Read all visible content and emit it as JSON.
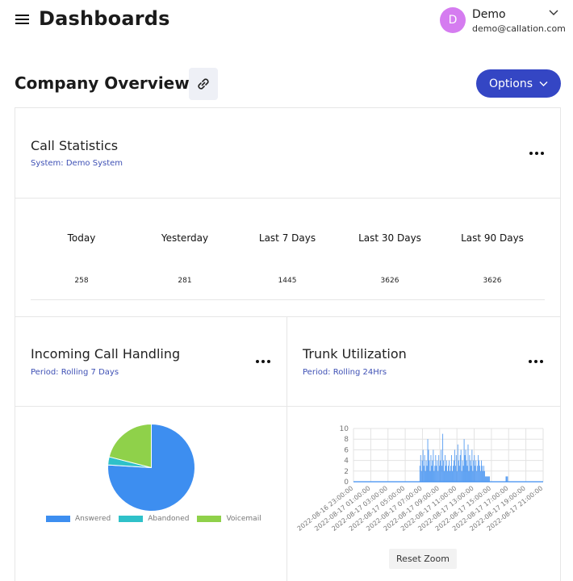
{
  "header": {
    "title": "Dashboards",
    "user": {
      "initial": "D",
      "name": "Demo",
      "email": "demo@callation.com"
    }
  },
  "page": {
    "section_title": "Company Overview",
    "options_label": "Options"
  },
  "call_statistics": {
    "title": "Call Statistics",
    "subtitle": "System: Demo System",
    "columns": [
      {
        "label": "Today",
        "value": "258"
      },
      {
        "label": "Yesterday",
        "value": "281"
      },
      {
        "label": "Last 7 Days",
        "value": "1445"
      },
      {
        "label": "Last 30 Days",
        "value": "3626"
      },
      {
        "label": "Last 90 Days",
        "value": "3626"
      }
    ]
  },
  "incoming_call_handling": {
    "title": "Incoming Call Handling",
    "subtitle": "Period: Rolling 7 Days"
  },
  "trunk_utilization": {
    "title": "Trunk Utilization",
    "subtitle": "Period: Rolling 24Hrs",
    "reset_zoom_label": "Reset Zoom"
  },
  "chart_data": [
    {
      "type": "pie",
      "labels": [
        "Answered",
        "Abandoned",
        "Voicemail"
      ],
      "values": [
        76,
        3,
        21
      ],
      "colors": [
        "#3d8ef0",
        "#2fc1c9",
        "#8fd14a"
      ],
      "legend": "bottom"
    },
    {
      "type": "bar",
      "x_tick_labels": [
        "2022-08-16 23:00:00",
        "2022-08-17 01:00:00",
        "2022-08-17 03:00:00",
        "2022-08-17 05:00:00",
        "2022-08-17 07:00:00",
        "2022-08-17 09:00:00",
        "2022-08-17 11:00:00",
        "2022-08-17 13:00:00",
        "2022-08-17 15:00:00",
        "2022-08-17 17:00:00",
        "2022-08-17 19:00:00",
        "2022-08-17 21:00:00"
      ],
      "y_ticks": [
        0,
        2,
        4,
        6,
        8,
        10
      ],
      "ylim": [
        0,
        10
      ],
      "xlim_hours": [
        0,
        24
      ],
      "color": "#3d8ef0",
      "grid": true,
      "x_hours": [
        8.4,
        8.5,
        8.6,
        8.7,
        8.8,
        8.9,
        9.0,
        9.1,
        9.2,
        9.3,
        9.4,
        9.5,
        9.6,
        9.7,
        9.8,
        9.9,
        10.0,
        10.1,
        10.2,
        10.3,
        10.4,
        10.5,
        10.6,
        10.7,
        10.8,
        10.9,
        11.0,
        11.1,
        11.2,
        11.3,
        11.4,
        11.5,
        11.6,
        11.7,
        11.8,
        11.9,
        12.0,
        12.1,
        12.2,
        12.3,
        12.4,
        12.5,
        12.6,
        12.7,
        12.8,
        12.9,
        13.0,
        13.1,
        13.2,
        13.3,
        13.4,
        13.5,
        13.6,
        13.7,
        13.8,
        13.9,
        14.0,
        14.1,
        14.2,
        14.3,
        14.4,
        14.5,
        14.6,
        14.7,
        14.8,
        14.9,
        15.0,
        15.1,
        15.2,
        15.3,
        15.4,
        15.5,
        15.6,
        15.7,
        15.8,
        15.9,
        16.0,
        16.1,
        16.2,
        16.3,
        16.4,
        16.5,
        16.6,
        16.7,
        16.8,
        16.9,
        17.0,
        17.1,
        17.2,
        19.3,
        19.4,
        19.5
      ],
      "values": [
        3,
        5,
        2,
        4,
        6,
        3,
        5,
        2,
        4,
        3,
        8,
        6,
        4,
        2,
        5,
        3,
        4,
        6,
        2,
        3,
        5,
        3,
        4,
        2,
        5,
        3,
        4,
        6,
        3,
        9,
        4,
        2,
        5,
        3,
        4,
        2,
        3,
        4,
        2,
        3,
        5,
        2,
        3,
        4,
        6,
        3,
        5,
        2,
        7,
        4,
        3,
        5,
        6,
        2,
        4,
        3,
        8,
        5,
        6,
        4,
        3,
        7,
        2,
        5,
        4,
        3,
        6,
        2,
        4,
        5,
        3,
        4,
        2,
        3,
        5,
        4,
        3,
        2,
        4,
        3,
        2,
        3,
        2,
        1,
        1,
        1,
        1,
        1,
        1,
        1,
        1,
        1
      ]
    }
  ]
}
